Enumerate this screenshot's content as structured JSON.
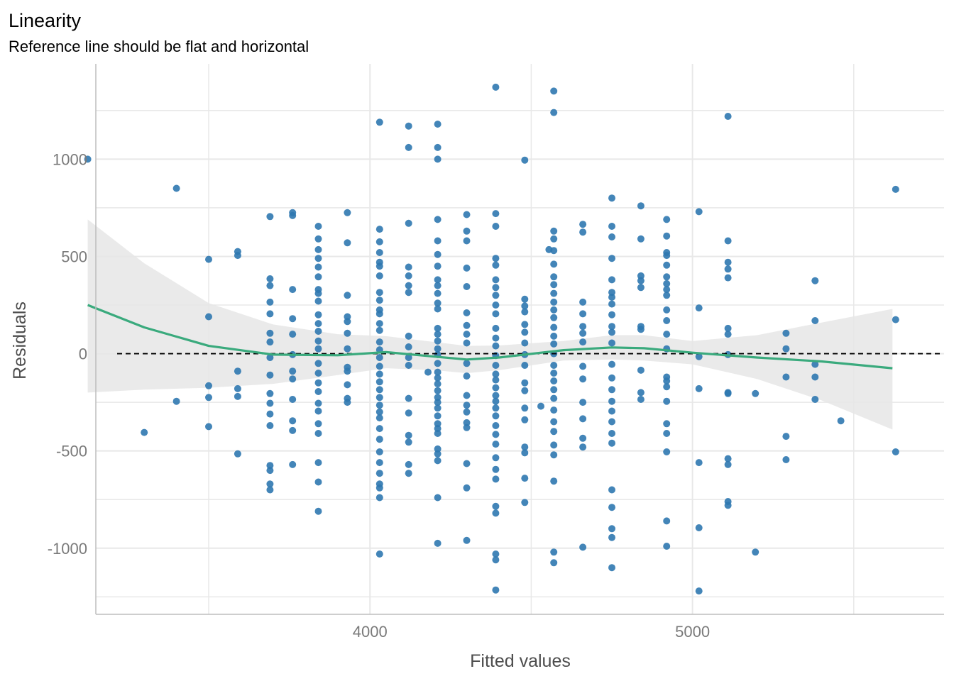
{
  "chart_data": {
    "type": "scatter",
    "title": "Linearity",
    "subtitle": "Reference line should be flat and horizontal",
    "xlabel": "Fitted values",
    "ylabel": "Residuals",
    "xlim": [
      3150,
      5780
    ],
    "ylim": [
      -1340,
      1490
    ],
    "x_ticks": [
      4000,
      5000
    ],
    "x_tick_labels": [
      "4000",
      "5000"
    ],
    "y_ticks": [
      -1000,
      -500,
      0,
      500,
      1000
    ],
    "y_tick_labels": [
      "-1000",
      "-500",
      "0",
      "500",
      "1000"
    ],
    "grid": true,
    "reference_line": 0,
    "colors": {
      "points": "#2f78b0",
      "smooth": "#3aaa7d",
      "band": "#e6e6e6",
      "grid": "#e8e8e8",
      "axis": "#bdbdbd"
    },
    "smooth": [
      [
        3125,
        250
      ],
      [
        3300,
        135
      ],
      [
        3500,
        40
      ],
      [
        3700,
        -5
      ],
      [
        3900,
        -8
      ],
      [
        4050,
        8
      ],
      [
        4200,
        -15
      ],
      [
        4300,
        -30
      ],
      [
        4400,
        -20
      ],
      [
        4600,
        18
      ],
      [
        4750,
        32
      ],
      [
        4850,
        28
      ],
      [
        5000,
        5
      ],
      [
        5200,
        -20
      ],
      [
        5400,
        -40
      ],
      [
        5620,
        -75
      ]
    ],
    "band_upper": [
      [
        3125,
        690
      ],
      [
        3300,
        465
      ],
      [
        3500,
        260
      ],
      [
        3700,
        150
      ],
      [
        3900,
        100
      ],
      [
        4050,
        90
      ],
      [
        4200,
        60
      ],
      [
        4300,
        40
      ],
      [
        4400,
        42
      ],
      [
        4600,
        65
      ],
      [
        4750,
        95
      ],
      [
        4850,
        95
      ],
      [
        5000,
        65
      ],
      [
        5200,
        95
      ],
      [
        5400,
        160
      ],
      [
        5620,
        230
      ]
    ],
    "band_lower": [
      [
        3125,
        -200
      ],
      [
        3300,
        -185
      ],
      [
        3500,
        -175
      ],
      [
        3700,
        -155
      ],
      [
        3900,
        -110
      ],
      [
        4050,
        -75
      ],
      [
        4200,
        -85
      ],
      [
        4300,
        -100
      ],
      [
        4400,
        -85
      ],
      [
        4600,
        -35
      ],
      [
        4750,
        -30
      ],
      [
        4850,
        -35
      ],
      [
        5000,
        -55
      ],
      [
        5200,
        -130
      ],
      [
        5400,
        -240
      ],
      [
        5620,
        -390
      ]
    ],
    "points": [
      [
        3125,
        1000
      ],
      [
        3300,
        -405
      ],
      [
        3400,
        850
      ],
      [
        3400,
        -245
      ],
      [
        3500,
        485
      ],
      [
        3500,
        190
      ],
      [
        3500,
        -165
      ],
      [
        3500,
        -225
      ],
      [
        3500,
        -375
      ],
      [
        3590,
        525
      ],
      [
        3590,
        505
      ],
      [
        3590,
        -90
      ],
      [
        3590,
        -180
      ],
      [
        3590,
        -220
      ],
      [
        3590,
        -515
      ],
      [
        3690,
        705
      ],
      [
        3690,
        385
      ],
      [
        3690,
        350
      ],
      [
        3690,
        265
      ],
      [
        3690,
        205
      ],
      [
        3690,
        105
      ],
      [
        3690,
        60
      ],
      [
        3690,
        -20
      ],
      [
        3690,
        -110
      ],
      [
        3690,
        -205
      ],
      [
        3690,
        -255
      ],
      [
        3690,
        -310
      ],
      [
        3690,
        -370
      ],
      [
        3690,
        -575
      ],
      [
        3690,
        -600
      ],
      [
        3690,
        -670
      ],
      [
        3690,
        -700
      ],
      [
        3760,
        725
      ],
      [
        3760,
        710
      ],
      [
        3760,
        330
      ],
      [
        3760,
        180
      ],
      [
        3760,
        100
      ],
      [
        3760,
        -5
      ],
      [
        3760,
        -90
      ],
      [
        3760,
        -130
      ],
      [
        3760,
        -235
      ],
      [
        3760,
        -345
      ],
      [
        3760,
        -395
      ],
      [
        3760,
        -570
      ],
      [
        3840,
        655
      ],
      [
        3840,
        590
      ],
      [
        3840,
        535
      ],
      [
        3840,
        490
      ],
      [
        3840,
        445
      ],
      [
        3840,
        395
      ],
      [
        3840,
        330
      ],
      [
        3840,
        310
      ],
      [
        3840,
        270
      ],
      [
        3840,
        200
      ],
      [
        3840,
        155
      ],
      [
        3840,
        115
      ],
      [
        3840,
        65
      ],
      [
        3840,
        25
      ],
      [
        3840,
        -50
      ],
      [
        3840,
        -100
      ],
      [
        3840,
        -150
      ],
      [
        3840,
        -195
      ],
      [
        3840,
        -255
      ],
      [
        3840,
        -295
      ],
      [
        3840,
        -360
      ],
      [
        3840,
        -410
      ],
      [
        3840,
        -560
      ],
      [
        3840,
        -660
      ],
      [
        3840,
        -810
      ],
      [
        3930,
        725
      ],
      [
        3930,
        570
      ],
      [
        3930,
        300
      ],
      [
        3930,
        190
      ],
      [
        3930,
        165
      ],
      [
        3930,
        105
      ],
      [
        3930,
        25
      ],
      [
        3930,
        -70
      ],
      [
        3930,
        -90
      ],
      [
        3930,
        -160
      ],
      [
        3930,
        -230
      ],
      [
        3930,
        -250
      ],
      [
        4030,
        1190
      ],
      [
        4030,
        640
      ],
      [
        4030,
        575
      ],
      [
        4030,
        520
      ],
      [
        4030,
        470
      ],
      [
        4030,
        450
      ],
      [
        4030,
        400
      ],
      [
        4030,
        315
      ],
      [
        4030,
        275
      ],
      [
        4030,
        225
      ],
      [
        4030,
        205
      ],
      [
        4030,
        155
      ],
      [
        4030,
        120
      ],
      [
        4030,
        60
      ],
      [
        4030,
        20
      ],
      [
        4030,
        -20
      ],
      [
        4030,
        -65
      ],
      [
        4030,
        -105
      ],
      [
        4030,
        -145
      ],
      [
        4030,
        -185
      ],
      [
        4030,
        -225
      ],
      [
        4030,
        -265
      ],
      [
        4030,
        -300
      ],
      [
        4030,
        -330
      ],
      [
        4030,
        -385
      ],
      [
        4030,
        -440
      ],
      [
        4030,
        -505
      ],
      [
        4030,
        -560
      ],
      [
        4030,
        -615
      ],
      [
        4030,
        -670
      ],
      [
        4030,
        -690
      ],
      [
        4030,
        -740
      ],
      [
        4030,
        -1030
      ],
      [
        4120,
        1170
      ],
      [
        4120,
        1060
      ],
      [
        4120,
        670
      ],
      [
        4120,
        445
      ],
      [
        4120,
        400
      ],
      [
        4120,
        350
      ],
      [
        4120,
        315
      ],
      [
        4120,
        90
      ],
      [
        4120,
        35
      ],
      [
        4120,
        -20
      ],
      [
        4120,
        -60
      ],
      [
        4120,
        -230
      ],
      [
        4120,
        -305
      ],
      [
        4120,
        -420
      ],
      [
        4120,
        -455
      ],
      [
        4120,
        -570
      ],
      [
        4120,
        -615
      ],
      [
        4180,
        -95
      ],
      [
        4210,
        1180
      ],
      [
        4210,
        1060
      ],
      [
        4210,
        1000
      ],
      [
        4210,
        690
      ],
      [
        4210,
        580
      ],
      [
        4210,
        510
      ],
      [
        4210,
        450
      ],
      [
        4210,
        380
      ],
      [
        4210,
        350
      ],
      [
        4210,
        310
      ],
      [
        4210,
        260
      ],
      [
        4210,
        230
      ],
      [
        4210,
        130
      ],
      [
        4210,
        100
      ],
      [
        4210,
        65
      ],
      [
        4210,
        25
      ],
      [
        4210,
        -5
      ],
      [
        4210,
        -50
      ],
      [
        4210,
        -95
      ],
      [
        4210,
        -125
      ],
      [
        4210,
        -155
      ],
      [
        4210,
        -190
      ],
      [
        4210,
        -225
      ],
      [
        4210,
        -250
      ],
      [
        4210,
        -280
      ],
      [
        4210,
        -320
      ],
      [
        4210,
        -360
      ],
      [
        4210,
        -385
      ],
      [
        4210,
        -410
      ],
      [
        4210,
        -490
      ],
      [
        4210,
        -515
      ],
      [
        4210,
        -550
      ],
      [
        4210,
        -740
      ],
      [
        4210,
        -975
      ],
      [
        4300,
        715
      ],
      [
        4300,
        630
      ],
      [
        4300,
        580
      ],
      [
        4300,
        440
      ],
      [
        4300,
        345
      ],
      [
        4300,
        210
      ],
      [
        4300,
        145
      ],
      [
        4300,
        100
      ],
      [
        4300,
        55
      ],
      [
        4300,
        -50
      ],
      [
        4300,
        -115
      ],
      [
        4300,
        -215
      ],
      [
        4300,
        -265
      ],
      [
        4300,
        -300
      ],
      [
        4300,
        -355
      ],
      [
        4300,
        -380
      ],
      [
        4300,
        -565
      ],
      [
        4300,
        -690
      ],
      [
        4300,
        -960
      ],
      [
        4390,
        1370
      ],
      [
        4390,
        720
      ],
      [
        4390,
        655
      ],
      [
        4390,
        490
      ],
      [
        4390,
        455
      ],
      [
        4390,
        380
      ],
      [
        4390,
        340
      ],
      [
        4390,
        300
      ],
      [
        4390,
        250
      ],
      [
        4390,
        205
      ],
      [
        4390,
        130
      ],
      [
        4390,
        80
      ],
      [
        4390,
        40
      ],
      [
        4390,
        -10
      ],
      [
        4390,
        -60
      ],
      [
        4390,
        -105
      ],
      [
        4390,
        -135
      ],
      [
        4390,
        -175
      ],
      [
        4390,
        -215
      ],
      [
        4390,
        -245
      ],
      [
        4390,
        -280
      ],
      [
        4390,
        -320
      ],
      [
        4390,
        -370
      ],
      [
        4390,
        -415
      ],
      [
        4390,
        -465
      ],
      [
        4390,
        -535
      ],
      [
        4390,
        -595
      ],
      [
        4390,
        -645
      ],
      [
        4390,
        -785
      ],
      [
        4390,
        -820
      ],
      [
        4390,
        -1030
      ],
      [
        4390,
        -1060
      ],
      [
        4390,
        -1215
      ],
      [
        4480,
        995
      ],
      [
        4480,
        280
      ],
      [
        4480,
        245
      ],
      [
        4480,
        215
      ],
      [
        4480,
        150
      ],
      [
        4480,
        110
      ],
      [
        4480,
        55
      ],
      [
        4480,
        -5
      ],
      [
        4480,
        -60
      ],
      [
        4480,
        -150
      ],
      [
        4480,
        -190
      ],
      [
        4480,
        -280
      ],
      [
        4480,
        -340
      ],
      [
        4480,
        -480
      ],
      [
        4480,
        -510
      ],
      [
        4480,
        -640
      ],
      [
        4480,
        -765
      ],
      [
        4530,
        -270
      ],
      [
        4555,
        535
      ],
      [
        4570,
        1350
      ],
      [
        4570,
        1240
      ],
      [
        4570,
        630
      ],
      [
        4570,
        590
      ],
      [
        4570,
        530
      ],
      [
        4570,
        460
      ],
      [
        4570,
        395
      ],
      [
        4570,
        355
      ],
      [
        4570,
        310
      ],
      [
        4570,
        265
      ],
      [
        4570,
        225
      ],
      [
        4570,
        185
      ],
      [
        4570,
        135
      ],
      [
        4570,
        90
      ],
      [
        4570,
        50
      ],
      [
        4570,
        0
      ],
      [
        4570,
        -60
      ],
      [
        4570,
        -100
      ],
      [
        4570,
        -140
      ],
      [
        4570,
        -185
      ],
      [
        4570,
        -230
      ],
      [
        4570,
        -290
      ],
      [
        4570,
        -350
      ],
      [
        4570,
        -400
      ],
      [
        4570,
        -470
      ],
      [
        4570,
        -520
      ],
      [
        4570,
        -655
      ],
      [
        4570,
        -1020
      ],
      [
        4570,
        -1075
      ],
      [
        4660,
        665
      ],
      [
        4660,
        625
      ],
      [
        4660,
        265
      ],
      [
        4660,
        205
      ],
      [
        4660,
        140
      ],
      [
        4660,
        105
      ],
      [
        4660,
        60
      ],
      [
        4660,
        -65
      ],
      [
        4660,
        -130
      ],
      [
        4660,
        -250
      ],
      [
        4660,
        -335
      ],
      [
        4660,
        -435
      ],
      [
        4660,
        -480
      ],
      [
        4660,
        -995
      ],
      [
        4750,
        800
      ],
      [
        4750,
        655
      ],
      [
        4750,
        600
      ],
      [
        4750,
        490
      ],
      [
        4750,
        380
      ],
      [
        4750,
        315
      ],
      [
        4750,
        290
      ],
      [
        4750,
        255
      ],
      [
        4750,
        200
      ],
      [
        4750,
        140
      ],
      [
        4750,
        110
      ],
      [
        4750,
        55
      ],
      [
        4750,
        -55
      ],
      [
        4750,
        -125
      ],
      [
        4750,
        -185
      ],
      [
        4750,
        -245
      ],
      [
        4750,
        -295
      ],
      [
        4750,
        -350
      ],
      [
        4750,
        -410
      ],
      [
        4750,
        -460
      ],
      [
        4750,
        -700
      ],
      [
        4750,
        -790
      ],
      [
        4750,
        -900
      ],
      [
        4750,
        -945
      ],
      [
        4750,
        -1100
      ],
      [
        4840,
        760
      ],
      [
        4840,
        590
      ],
      [
        4840,
        400
      ],
      [
        4840,
        375
      ],
      [
        4840,
        340
      ],
      [
        4840,
        140
      ],
      [
        4840,
        125
      ],
      [
        4840,
        -85
      ],
      [
        4840,
        -200
      ],
      [
        4840,
        -235
      ],
      [
        4920,
        690
      ],
      [
        4920,
        605
      ],
      [
        4920,
        520
      ],
      [
        4920,
        505
      ],
      [
        4920,
        455
      ],
      [
        4920,
        395
      ],
      [
        4920,
        360
      ],
      [
        4920,
        330
      ],
      [
        4920,
        300
      ],
      [
        4920,
        225
      ],
      [
        4920,
        170
      ],
      [
        4920,
        100
      ],
      [
        4920,
        25
      ],
      [
        4920,
        -120
      ],
      [
        4920,
        -140
      ],
      [
        4920,
        -170
      ],
      [
        4920,
        -245
      ],
      [
        4920,
        -360
      ],
      [
        4920,
        -410
      ],
      [
        4920,
        -505
      ],
      [
        4920,
        -860
      ],
      [
        4920,
        -990
      ],
      [
        5020,
        730
      ],
      [
        5020,
        235
      ],
      [
        5020,
        -15
      ],
      [
        5020,
        -180
      ],
      [
        5020,
        -560
      ],
      [
        5020,
        -895
      ],
      [
        5020,
        -1220
      ],
      [
        5110,
        1220
      ],
      [
        5110,
        580
      ],
      [
        5110,
        470
      ],
      [
        5110,
        435
      ],
      [
        5110,
        390
      ],
      [
        5110,
        130
      ],
      [
        5110,
        100
      ],
      [
        5110,
        -5
      ],
      [
        5110,
        -200
      ],
      [
        5110,
        -205
      ],
      [
        5110,
        -540
      ],
      [
        5110,
        -570
      ],
      [
        5110,
        -760
      ],
      [
        5110,
        -780
      ],
      [
        5195,
        -205
      ],
      [
        5195,
        -1020
      ],
      [
        5290,
        105
      ],
      [
        5290,
        25
      ],
      [
        5290,
        -120
      ],
      [
        5290,
        -425
      ],
      [
        5290,
        -545
      ],
      [
        5380,
        375
      ],
      [
        5380,
        170
      ],
      [
        5380,
        -55
      ],
      [
        5380,
        -120
      ],
      [
        5380,
        -235
      ],
      [
        5460,
        -345
      ],
      [
        5630,
        845
      ],
      [
        5630,
        175
      ],
      [
        5630,
        -505
      ]
    ]
  }
}
